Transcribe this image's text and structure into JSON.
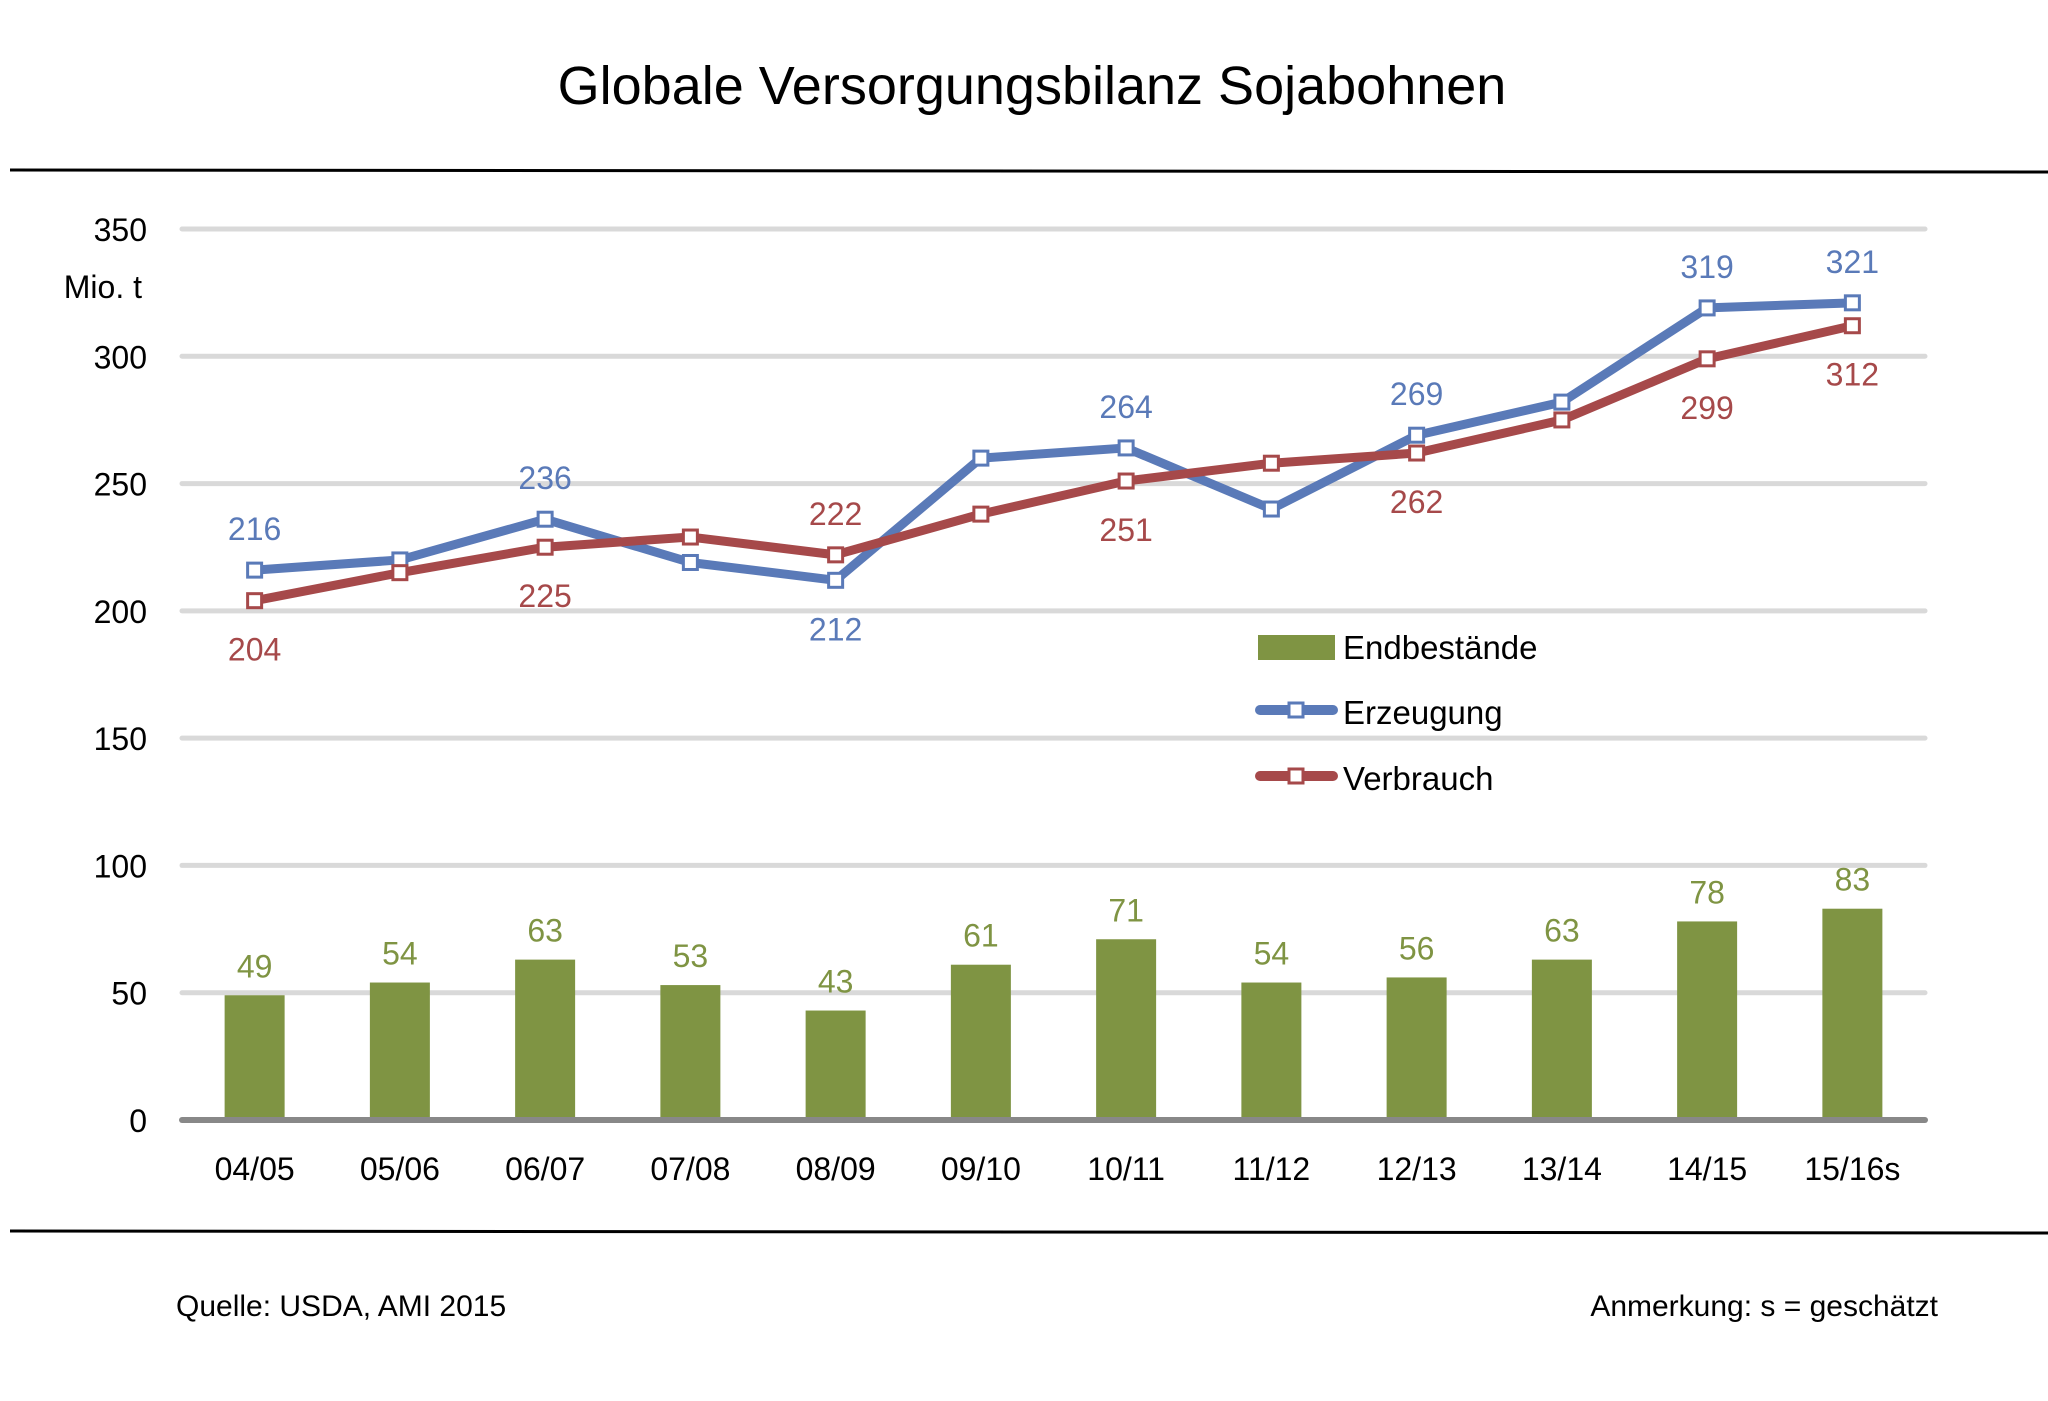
{
  "chart_data": {
    "type": "bar+line",
    "title": "Globale Versorgungsbilanz Sojabohnen",
    "ylabel": "Mio. t",
    "xlabel": "",
    "ylim": [
      0,
      350
    ],
    "yticks": [
      0,
      50,
      100,
      150,
      200,
      250,
      300,
      350
    ],
    "grid": true,
    "legend_position": "center-right",
    "categories": [
      "04/05",
      "05/06",
      "06/07",
      "07/08",
      "08/09",
      "09/10",
      "10/11",
      "11/12",
      "12/13",
      "13/14",
      "14/15",
      "15/16s"
    ],
    "series": [
      {
        "name": "Endbestände",
        "type": "bar",
        "color": "#7F9443",
        "values": [
          49,
          54,
          63,
          53,
          43,
          61,
          71,
          54,
          56,
          63,
          78,
          83
        ],
        "labels": [
          "49",
          "54",
          "63",
          "53",
          "43",
          "61",
          "71",
          "54",
          "56",
          "63",
          "78",
          "83"
        ]
      },
      {
        "name": "Erzeugung",
        "type": "line",
        "color": "#5A7AB8",
        "values": [
          216,
          220,
          236,
          219,
          212,
          260,
          264,
          240,
          269,
          282,
          319,
          321
        ],
        "labels": [
          "216",
          "",
          "236",
          "",
          "212",
          "",
          "264",
          "",
          "269",
          "",
          "319",
          "321"
        ],
        "label_positions": [
          "above",
          "",
          "above",
          "",
          "below",
          "",
          "above",
          "",
          "above",
          "",
          "above",
          "above"
        ]
      },
      {
        "name": "Verbrauch",
        "type": "line",
        "color": "#A6494A",
        "values": [
          204,
          215,
          225,
          229,
          222,
          238,
          251,
          258,
          262,
          275,
          299,
          312
        ],
        "labels": [
          "204",
          "",
          "225",
          "",
          "222",
          "",
          "251",
          "",
          "262",
          "",
          "299",
          "312"
        ],
        "label_positions": [
          "below",
          "",
          "below",
          "",
          "above",
          "",
          "below",
          "",
          "below",
          "",
          "below",
          "below"
        ]
      }
    ],
    "source": "Quelle: USDA, AMI 2015",
    "note": "Anmerkung: s = geschätzt"
  }
}
